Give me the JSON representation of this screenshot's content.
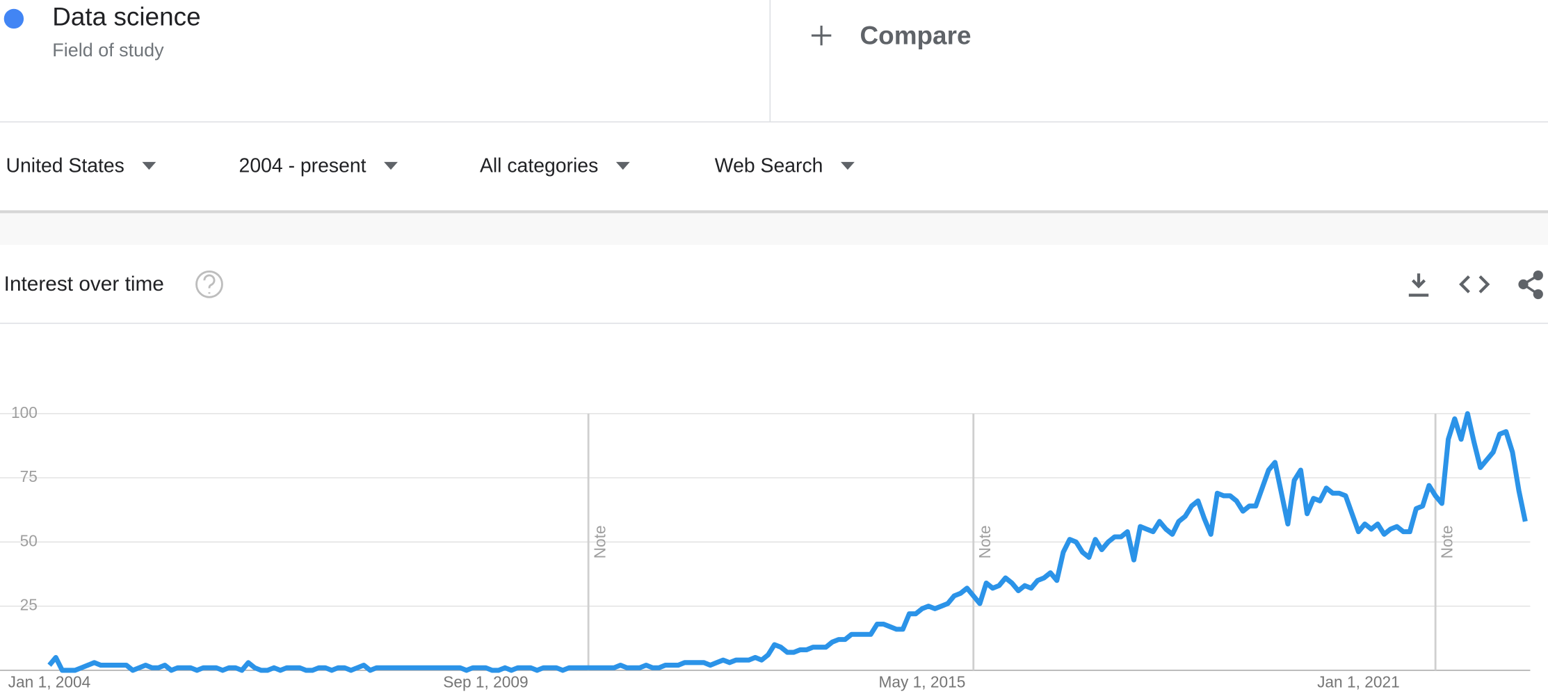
{
  "header": {
    "term": "Data science",
    "subtitle": "Field of study",
    "compare": "Compare"
  },
  "filters": [
    "United States",
    "2004 - present",
    "All categories",
    "Web Search"
  ],
  "panel_title": "Interest over time",
  "chart_data": {
    "type": "line",
    "categories": [
      "Jan 1, 2004",
      null,
      null,
      null,
      null,
      null,
      null,
      null,
      null,
      null,
      null,
      null,
      null,
      null,
      null,
      null,
      null,
      null,
      null,
      null,
      null,
      null,
      null,
      null,
      null,
      null,
      null,
      null,
      null,
      null,
      null,
      null,
      null,
      null,
      null,
      null,
      null,
      null,
      null,
      null,
      null,
      null,
      null,
      null,
      null,
      null,
      null,
      null,
      null,
      null,
      null,
      null,
      null,
      null,
      null,
      null,
      null,
      null,
      null,
      null,
      null,
      null,
      null,
      null,
      null,
      null,
      null,
      null,
      "Sep 1, 2009",
      null,
      null,
      null,
      null,
      null,
      null,
      null,
      null,
      null,
      null,
      null,
      null,
      null,
      null,
      null,
      null,
      null,
      null,
      null,
      null,
      null,
      null,
      null,
      null,
      null,
      null,
      null,
      null,
      null,
      null,
      null,
      null,
      null,
      null,
      null,
      null,
      null,
      null,
      null,
      null,
      null,
      null,
      null,
      null,
      null,
      null,
      null,
      null,
      null,
      null,
      null,
      null,
      null,
      null,
      null,
      null,
      null,
      null,
      null,
      null,
      null,
      null,
      null,
      null,
      null,
      null,
      null,
      "May 1, 2015",
      null,
      null,
      null,
      null,
      null,
      null,
      null,
      null,
      null,
      null,
      null,
      null,
      null,
      null,
      null,
      null,
      null,
      null,
      null,
      null,
      null,
      null,
      null,
      null,
      null,
      null,
      null,
      null,
      null,
      null,
      null,
      null,
      null,
      null,
      null,
      null,
      null,
      null,
      null,
      null,
      null,
      null,
      null,
      null,
      null,
      null,
      null,
      null,
      null,
      null,
      null,
      null,
      null,
      null,
      null,
      null,
      null,
      null,
      null,
      null,
      null,
      null,
      null,
      null,
      null,
      null,
      null,
      "Jan 1, 2021",
      null,
      null,
      null,
      null,
      null,
      null,
      null,
      null,
      null,
      null,
      null,
      null,
      null,
      null,
      null,
      null,
      null,
      null,
      null,
      null,
      null,
      null,
      null,
      null,
      null,
      null
    ],
    "series": [
      {
        "color": "#2b93e8",
        "values": [
          2,
          5,
          0,
          0,
          0,
          1,
          2,
          3,
          2,
          2,
          2,
          2,
          2,
          0,
          1,
          2,
          1,
          1,
          2,
          0,
          1,
          1,
          1,
          0,
          1,
          1,
          1,
          0,
          1,
          1,
          0,
          3,
          1,
          0,
          0,
          1,
          0,
          1,
          1,
          1,
          0,
          0,
          1,
          1,
          0,
          1,
          1,
          0,
          1,
          2,
          0,
          1,
          1,
          1,
          1,
          1,
          1,
          1,
          1,
          1,
          1,
          1,
          1,
          1,
          1,
          0,
          1,
          1,
          1,
          0,
          0,
          1,
          0,
          1,
          1,
          1,
          0,
          1,
          1,
          1,
          0,
          1,
          1,
          1,
          1,
          1,
          1,
          1,
          1,
          2,
          1,
          1,
          1,
          2,
          1,
          1,
          2,
          2,
          2,
          3,
          3,
          3,
          3,
          2,
          3,
          4,
          3,
          4,
          4,
          4,
          5,
          4,
          6,
          10,
          9,
          7,
          7,
          8,
          8,
          9,
          9,
          9,
          11,
          12,
          12,
          14,
          14,
          14,
          14,
          18,
          18,
          17,
          16,
          16,
          22,
          22,
          24,
          25,
          24,
          25,
          26,
          29,
          30,
          32,
          29,
          26,
          34,
          32,
          33,
          36,
          34,
          31,
          33,
          32,
          35,
          36,
          38,
          35,
          46,
          51,
          50,
          46,
          44,
          51,
          47,
          50,
          52,
          52,
          54,
          43,
          56,
          55,
          54,
          58,
          55,
          53,
          58,
          60,
          64,
          66,
          59,
          53,
          69,
          68,
          68,
          66,
          62,
          64,
          64,
          71,
          78,
          81,
          69,
          57,
          74,
          78,
          61,
          67,
          66,
          71,
          69,
          69,
          68,
          61,
          54,
          57,
          55,
          57,
          53,
          55,
          56,
          54,
          54,
          63,
          64,
          72,
          68,
          65,
          90,
          98,
          90,
          100,
          89,
          79,
          82,
          85,
          92,
          93,
          85,
          70,
          58
        ]
      }
    ],
    "ylim": [
      0,
      100
    ],
    "yticks": [
      25,
      50,
      75,
      100
    ],
    "grid": true,
    "notes": [
      {
        "index": 84,
        "label": "Note"
      },
      {
        "index": 144,
        "label": "Note"
      },
      {
        "index": 216,
        "label": "Note"
      }
    ]
  }
}
